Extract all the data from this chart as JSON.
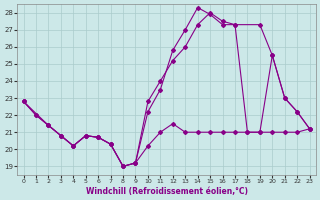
{
  "background_color": "#cce8e8",
  "grid_color": "#aacccc",
  "line_color": "#880088",
  "marker": "D",
  "markersize": 2,
  "linewidth": 0.8,
  "xlabel": "Windchill (Refroidissement éolien,°C)",
  "xlim": [
    -0.5,
    23.5
  ],
  "ylim": [
    18.5,
    28.5
  ],
  "yticks": [
    19,
    20,
    21,
    22,
    23,
    24,
    25,
    26,
    27,
    28
  ],
  "xticks": [
    0,
    1,
    2,
    3,
    4,
    5,
    6,
    7,
    8,
    9,
    10,
    11,
    12,
    13,
    14,
    15,
    16,
    17,
    18,
    19,
    20,
    21,
    22,
    23
  ],
  "line1_x": [
    0,
    1,
    2,
    3,
    4,
    5,
    6,
    7,
    8,
    9,
    10,
    11,
    12,
    13,
    14,
    15,
    16,
    17,
    18,
    19,
    20,
    21,
    22,
    23
  ],
  "line1_y": [
    22.8,
    22.0,
    21.4,
    20.8,
    20.2,
    20.8,
    20.7,
    20.3,
    19.0,
    19.2,
    20.2,
    21.0,
    21.5,
    21.0,
    21.0,
    21.0,
    21.0,
    21.0,
    21.0,
    21.0,
    21.0,
    21.0,
    21.0,
    21.2
  ],
  "line2_x": [
    0,
    1,
    2,
    3,
    4,
    5,
    6,
    7,
    8,
    9,
    10,
    11,
    12,
    13,
    14,
    15,
    16,
    17,
    18,
    19,
    20,
    21,
    22,
    23
  ],
  "line2_y": [
    22.8,
    22.0,
    21.4,
    20.8,
    20.2,
    20.8,
    20.7,
    20.3,
    19.0,
    19.2,
    22.2,
    23.5,
    25.8,
    27.0,
    28.3,
    27.9,
    27.3,
    27.3,
    21.0,
    21.0,
    25.5,
    23.0,
    22.2,
    21.2
  ],
  "line3_x": [
    0,
    2,
    3,
    4,
    5,
    6,
    7,
    8,
    9,
    10,
    11,
    12,
    13,
    14,
    15,
    16,
    17,
    19,
    20,
    21,
    22,
    23
  ],
  "line3_y": [
    22.8,
    21.4,
    20.8,
    20.2,
    20.8,
    20.7,
    20.3,
    19.0,
    19.2,
    22.8,
    24.0,
    25.2,
    26.0,
    27.3,
    28.0,
    27.5,
    27.3,
    27.3,
    25.5,
    23.0,
    22.2,
    21.2
  ]
}
